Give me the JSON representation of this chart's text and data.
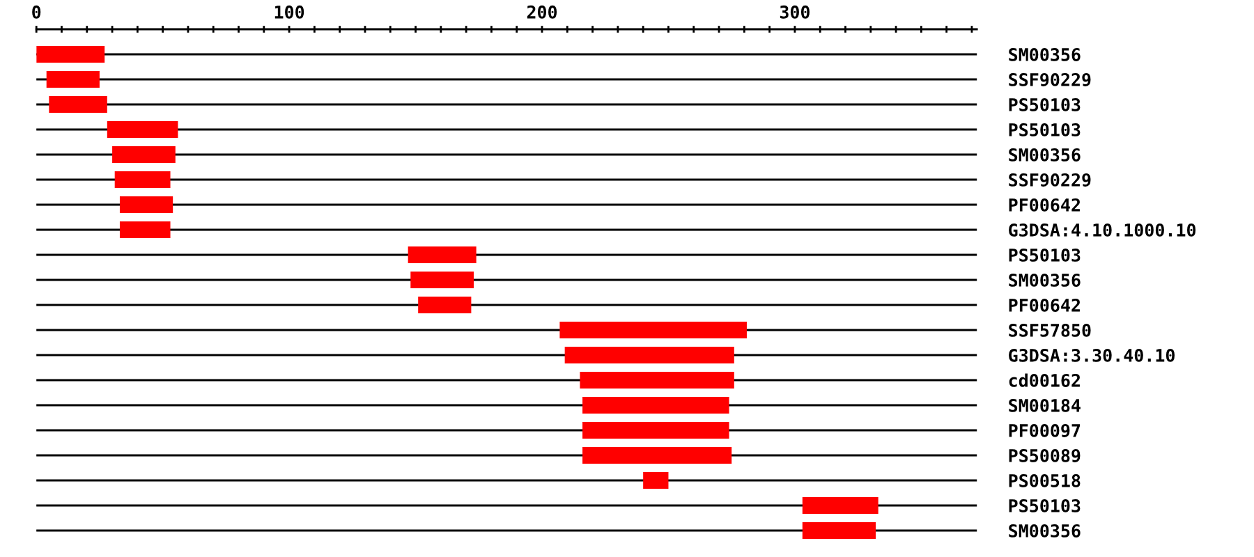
{
  "chart_data": {
    "type": "bar",
    "orientation": "horizontal",
    "categories": [
      "SM00356",
      "SSF90229",
      "PS50103",
      "PS50103",
      "SM00356",
      "SSF90229",
      "PF00642",
      "G3DSA:4.10.1000.10",
      "PS50103",
      "SM00356",
      "PF00642",
      "SSF57850",
      "G3DSA:3.30.40.10",
      "cd00162",
      "SM00184",
      "PF00097",
      "PS50089",
      "PS00518",
      "PS50103",
      "SM00356"
    ],
    "base": [
      0,
      4,
      5,
      28,
      30,
      31,
      33,
      33,
      147,
      148,
      151,
      207,
      209,
      215,
      216,
      216,
      216,
      240,
      303,
      303
    ],
    "values": [
      27,
      21,
      23,
      28,
      25,
      22,
      21,
      20,
      27,
      25,
      21,
      74,
      67,
      61,
      58,
      58,
      59,
      10,
      30,
      29
    ],
    "color": "#ff0000",
    "xlim": [
      0,
      372
    ],
    "xticks": [
      0,
      {
        "value": 10,
        "label": null
      },
      {
        "value": 20,
        "label": null
      },
      {
        "value": 30,
        "label": null
      },
      {
        "value": 40,
        "label": null
      },
      {
        "value": 50,
        "label": null
      },
      {
        "value": 60,
        "label": null
      },
      {
        "value": 70,
        "label": null
      },
      {
        "value": 80,
        "label": null
      },
      {
        "value": 90,
        "label": null
      },
      100,
      {
        "value": 110,
        "label": null
      },
      {
        "value": 120,
        "label": null
      },
      {
        "value": 130,
        "label": null
      },
      {
        "value": 140,
        "label": null
      },
      {
        "value": 150,
        "label": null
      },
      {
        "value": 160,
        "label": null
      },
      {
        "value": 170,
        "label": null
      },
      {
        "value": 180,
        "label": null
      },
      {
        "value": 190,
        "label": null
      },
      200,
      {
        "value": 210,
        "label": null
      },
      {
        "value": 220,
        "label": null
      },
      {
        "value": 230,
        "label": null
      },
      {
        "value": 240,
        "label": null
      },
      {
        "value": 250,
        "label": null
      },
      {
        "value": 260,
        "label": null
      },
      {
        "value": 270,
        "label": null
      },
      {
        "value": 280,
        "label": null
      },
      {
        "value": 290,
        "label": null
      },
      300,
      {
        "value": 310,
        "label": null
      },
      {
        "value": 320,
        "label": null
      },
      {
        "value": 330,
        "label": null
      },
      {
        "value": 340,
        "label": null
      },
      {
        "value": 350,
        "label": null
      },
      {
        "value": 360,
        "label": null
      },
      {
        "value": 370,
        "label": null
      }
    ],
    "grid": "y",
    "legend": false
  }
}
